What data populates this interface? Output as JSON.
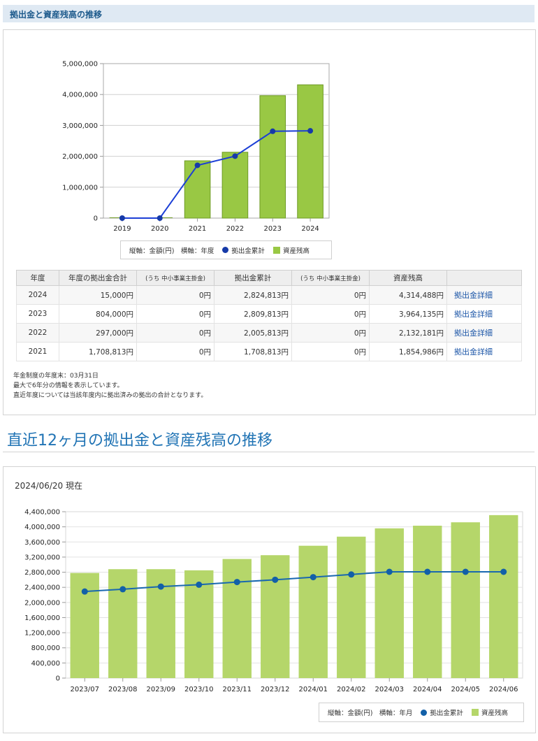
{
  "section1": {
    "heading": "拠出金と資産残高の推移",
    "chart_data": {
      "type": "bar",
      "categories": [
        "2019",
        "2020",
        "2021",
        "2022",
        "2023",
        "2024"
      ],
      "series": [
        {
          "name": "資産残高",
          "type": "bar",
          "values": [
            0,
            0,
            1854986,
            2132181,
            3964135,
            4314488
          ]
        },
        {
          "name": "拠出金累計",
          "type": "line",
          "values": [
            0,
            0,
            1708813,
            2005813,
            2809813,
            2824813
          ]
        }
      ],
      "y_ticks": [
        "5,000,000",
        "4,000,000",
        "3,000,000",
        "2,000,000",
        "1,000,000",
        "0"
      ],
      "ylim": [
        0,
        5000000
      ],
      "colors": {
        "bar": "#99c844",
        "bar_border": "#6e9a26",
        "line": "#1c3fd6",
        "point": "#163aa8"
      }
    },
    "legend": {
      "axes_note": "縦軸：金額(円)　横軸：年度",
      "line_label": "拠出金累計",
      "bar_label": "資産残高"
    },
    "table": {
      "headers": [
        "年度",
        "年度の拠出金合計",
        "(うち 中小事業主掛金)",
        "拠出金累計",
        "(うち 中小事業主掛金)",
        "資産残高",
        ""
      ],
      "rows": [
        {
          "year": "2024",
          "contrib": "15,000円",
          "sme1": "0円",
          "cumulative": "2,824,813円",
          "sme2": "0円",
          "balance": "4,314,488円",
          "link": "拠出金詳細"
        },
        {
          "year": "2023",
          "contrib": "804,000円",
          "sme1": "0円",
          "cumulative": "2,809,813円",
          "sme2": "0円",
          "balance": "3,964,135円",
          "link": "拠出金詳細"
        },
        {
          "year": "2022",
          "contrib": "297,000円",
          "sme1": "0円",
          "cumulative": "2,005,813円",
          "sme2": "0円",
          "balance": "2,132,181円",
          "link": "拠出金詳細"
        },
        {
          "year": "2021",
          "contrib": "1,708,813円",
          "sme1": "0円",
          "cumulative": "1,708,813円",
          "sme2": "0円",
          "balance": "1,854,986円",
          "link": "拠出金詳細"
        }
      ]
    },
    "notes": [
      "年金制度の年度末：03月31日",
      "最大で6年分の情報を表示しています。",
      "直近年度については当該年度内に拠出済みの拠出の合計となります。"
    ]
  },
  "section2": {
    "title": "直近12ヶ月の拠出金と資産残高の推移",
    "as_of": "2024/06/20 現在",
    "chart_data": {
      "type": "bar",
      "categories": [
        "2023/07",
        "2023/08",
        "2023/09",
        "2023/10",
        "2023/11",
        "2023/12",
        "2024/01",
        "2024/02",
        "2024/03",
        "2024/04",
        "2024/05",
        "2024/06"
      ],
      "series": [
        {
          "name": "資産残高",
          "type": "bar",
          "values": [
            2780000,
            2880000,
            2880000,
            2850000,
            3150000,
            3250000,
            3500000,
            3740000,
            3960000,
            4030000,
            4120000,
            4310000
          ]
        },
        {
          "name": "拠出金累計",
          "type": "line",
          "values": [
            2290000,
            2350000,
            2420000,
            2470000,
            2540000,
            2600000,
            2670000,
            2740000,
            2810000,
            2810000,
            2810000,
            2810000
          ]
        }
      ],
      "y_ticks": [
        "4,400,000",
        "4,000,000",
        "3,600,000",
        "3,200,000",
        "2,800,000",
        "2,400,000",
        "2,000,000",
        "1,600,000",
        "1,200,000",
        "800,000",
        "400,000",
        "0"
      ],
      "ylim": [
        0,
        4400000
      ],
      "colors": {
        "bar": "#b5d66a",
        "line": "#1968b0",
        "point": "#1260a8"
      }
    },
    "legend": {
      "axes_note": "縦軸：金額(円)　横軸：年月",
      "line_label": "拠出金累計",
      "bar_label": "資産残高"
    }
  }
}
